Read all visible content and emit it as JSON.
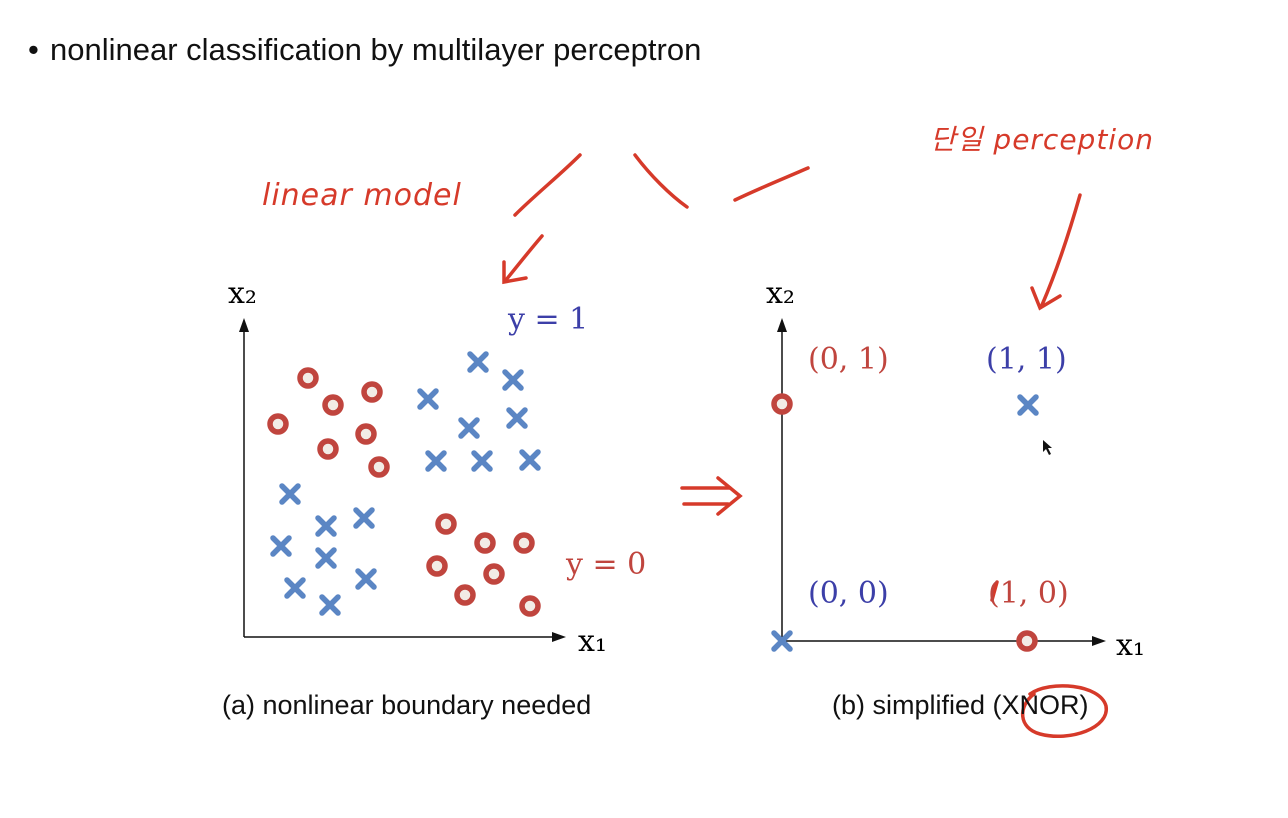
{
  "bullet": {
    "symbol": "•",
    "text": "nonlinear classification by multilayer perceptron"
  },
  "annotations": {
    "left_note": "linear model",
    "right_note": "단일 perception"
  },
  "plot_a": {
    "ylabel": "x₂",
    "xlabel": "x₁",
    "label_y1": "y = 1",
    "label_y0": "y = 0",
    "caption": "(a) nonlinear boundary needed"
  },
  "plot_b": {
    "ylabel": "x₂",
    "xlabel": "x₁",
    "point_labels": [
      "(0, 1)",
      "(1, 1)",
      "(0, 0)",
      "(1, 0)"
    ],
    "caption": "(b) simplified (XNOR)"
  },
  "colors": {
    "circle": "#c0453e",
    "cross": "#5b86c4",
    "ink": "#d63a2a",
    "axis": "#111111"
  }
}
